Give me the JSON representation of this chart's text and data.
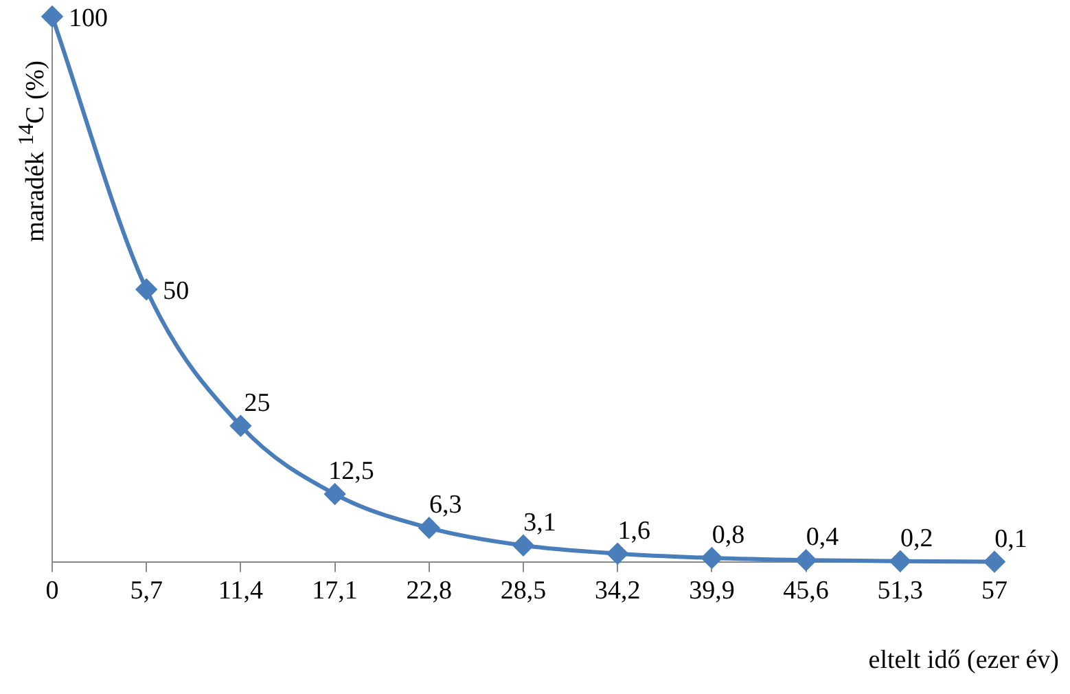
{
  "chart_data": {
    "type": "line",
    "xlabel": "eltelt idő (ezer év)",
    "ylabel": "maradék $^{14}$C (%)",
    "x": [
      0,
      5.7,
      11.4,
      17.1,
      22.8,
      28.5,
      34.2,
      39.9,
      45.6,
      51.3,
      57
    ],
    "series": [
      {
        "color": "#4a7ebb",
        "values": [
          100,
          50,
          25,
          12.5,
          6.3,
          3.1,
          1.6,
          0.8,
          0.4,
          0.2,
          0.1
        ],
        "value_labels": [
          "100",
          "50",
          "25",
          "12,5",
          "6,3",
          "3,1",
          "1,6",
          "0,8",
          "0,4",
          "0,2",
          "0,1"
        ]
      }
    ],
    "xlim": [
      0,
      57
    ],
    "xticks": [
      0,
      {
        "value": 5.7,
        "label": "5,7"
      },
      {
        "value": 11.4,
        "label": "11,4"
      },
      {
        "value": 17.1,
        "label": "17,1"
      },
      {
        "value": 22.8,
        "label": "22,8"
      },
      {
        "value": 28.5,
        "label": "28,5"
      },
      {
        "value": 34.2,
        "label": "34,2"
      },
      {
        "value": 39.9,
        "label": "39,9"
      },
      {
        "value": 45.6,
        "label": "45,6"
      },
      {
        "value": 51.3,
        "label": "51,3"
      },
      57
    ],
    "ylim": [
      0,
      100
    ],
    "tick_labels": "x",
    "grid": false,
    "legend": false,
    "marker": "diamond",
    "line_style": "solid"
  }
}
